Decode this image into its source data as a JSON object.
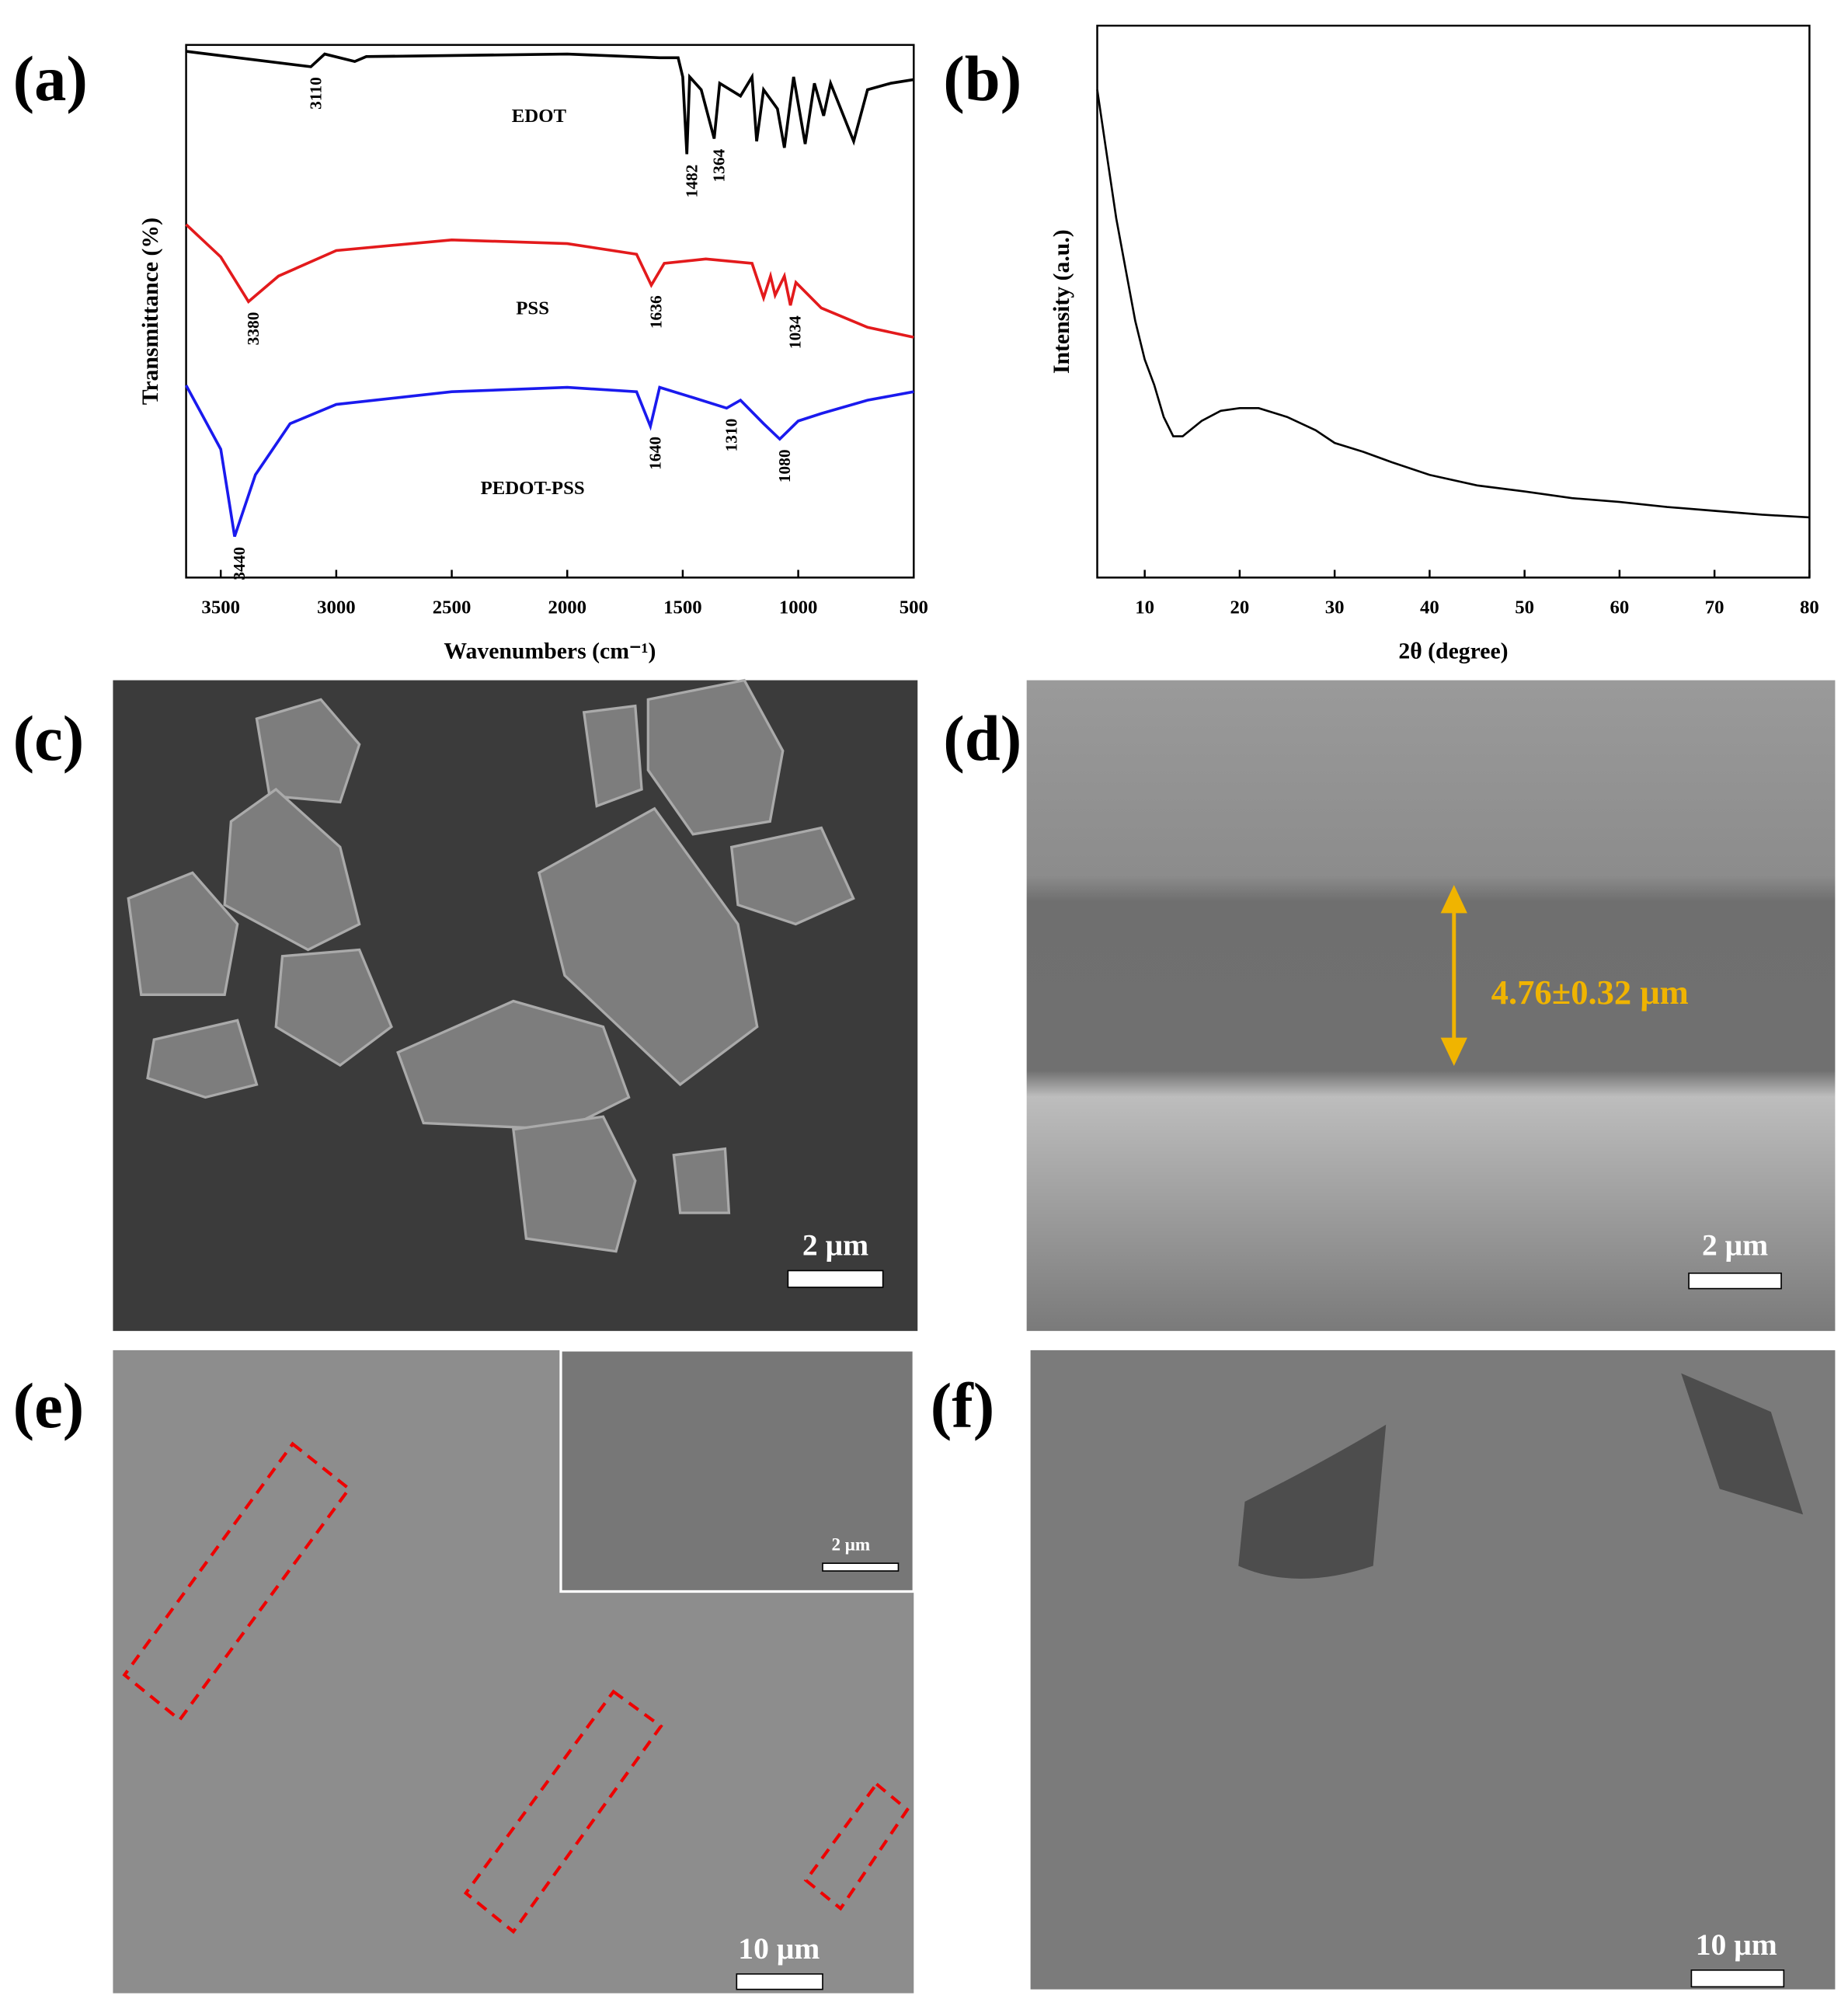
{
  "chart_data": [
    {
      "panel": "(a)",
      "type": "line",
      "xlabel": "Wavenumbers (cm⁻¹)",
      "ylabel": "Transmittance (%)",
      "xlim": [
        3650,
        500
      ],
      "ylim": [
        0,
        100
      ],
      "xticks": [
        3500,
        3000,
        2500,
        2000,
        1500,
        1000,
        500
      ],
      "series": [
        {
          "name": "EDOT",
          "color": "#000000",
          "x": [
            3650,
            3110,
            3050,
            2920,
            2870,
            2000,
            1600,
            1520,
            1500,
            1482,
            1470,
            1420,
            1364,
            1340,
            1250,
            1200,
            1180,
            1150,
            1090,
            1060,
            1020,
            970,
            930,
            890,
            860,
            760,
            700,
            600,
            500
          ],
          "values": [
            98.8,
            95.9,
            98.3,
            96.9,
            97.8,
            98.3,
            97.6,
            97.6,
            94.0,
            79.5,
            94.0,
            91.6,
            82.4,
            92.8,
            90.4,
            94.0,
            81.9,
            91.6,
            88.0,
            80.7,
            94.0,
            81.4,
            92.8,
            86.7,
            92.8,
            81.9,
            91.6,
            92.8,
            93.5
          ],
          "peaks": [
            3110,
            1482,
            1364
          ]
        },
        {
          "name": "PSS",
          "color": "#e31a1c",
          "x": [
            3650,
            3500,
            3380,
            3250,
            3000,
            2500,
            2000,
            1700,
            1636,
            1580,
            1400,
            1200,
            1150,
            1120,
            1100,
            1060,
            1034,
            1010,
            900,
            700,
            500
          ],
          "values": [
            66.3,
            60.2,
            51.8,
            56.6,
            61.4,
            63.4,
            62.7,
            60.7,
            54.9,
            59.0,
            59.8,
            59.0,
            52.5,
            56.6,
            53.0,
            56.6,
            51.1,
            55.4,
            50.6,
            47.0,
            45.1
          ],
          "peaks": [
            3380,
            1636,
            1034
          ]
        },
        {
          "name": "PEDOT-PSS",
          "color": "#1a1aee",
          "x": [
            3650,
            3500,
            3440,
            3350,
            3200,
            3000,
            2500,
            2000,
            1700,
            1640,
            1600,
            1450,
            1310,
            1250,
            1150,
            1080,
            1000,
            900,
            700,
            500
          ],
          "values": [
            36.1,
            24.1,
            7.7,
            19.3,
            28.9,
            32.5,
            34.9,
            35.7,
            34.9,
            28.4,
            35.7,
            33.7,
            31.8,
            33.3,
            28.9,
            26.0,
            29.4,
            30.8,
            33.3,
            34.9
          ],
          "peaks": [
            3440,
            1640,
            1310,
            1080
          ]
        }
      ]
    },
    {
      "panel": "(b)",
      "type": "line",
      "xlabel": "2θ (degree)",
      "ylabel": "Intensity (a.u.)",
      "xlim": [
        5,
        80
      ],
      "ylim": [
        0,
        100
      ],
      "xticks": [
        10,
        20,
        30,
        40,
        50,
        60,
        70,
        80
      ],
      "series": [
        {
          "color": "#000000",
          "x": [
            5,
            6,
            7,
            8,
            9,
            10,
            11,
            12,
            13,
            14,
            16,
            18,
            20,
            22,
            25,
            28,
            30,
            33,
            36,
            40,
            45,
            50,
            55,
            60,
            65,
            70,
            75,
            80
          ],
          "values": [
            88.4,
            76.7,
            65.1,
            55.8,
            46.5,
            39.5,
            34.9,
            29.1,
            25.6,
            25.6,
            28.4,
            30.2,
            30.7,
            30.7,
            29.1,
            26.7,
            24.4,
            22.8,
            20.9,
            18.6,
            16.7,
            15.6,
            14.4,
            13.7,
            12.8,
            12.1,
            11.4,
            10.9
          ]
        }
      ]
    }
  ],
  "images": [
    {
      "panel": "(c)",
      "scale_bar": "2 μm"
    },
    {
      "panel": "(d)",
      "scale_bar": "2 μm",
      "annotation": "4.76±0.32 μm"
    },
    {
      "panel": "(e)",
      "scale_bar": "10 μm",
      "inset_scale_bar": "2 μm"
    },
    {
      "panel": "(f)",
      "scale_bar": "10 μm"
    }
  ]
}
